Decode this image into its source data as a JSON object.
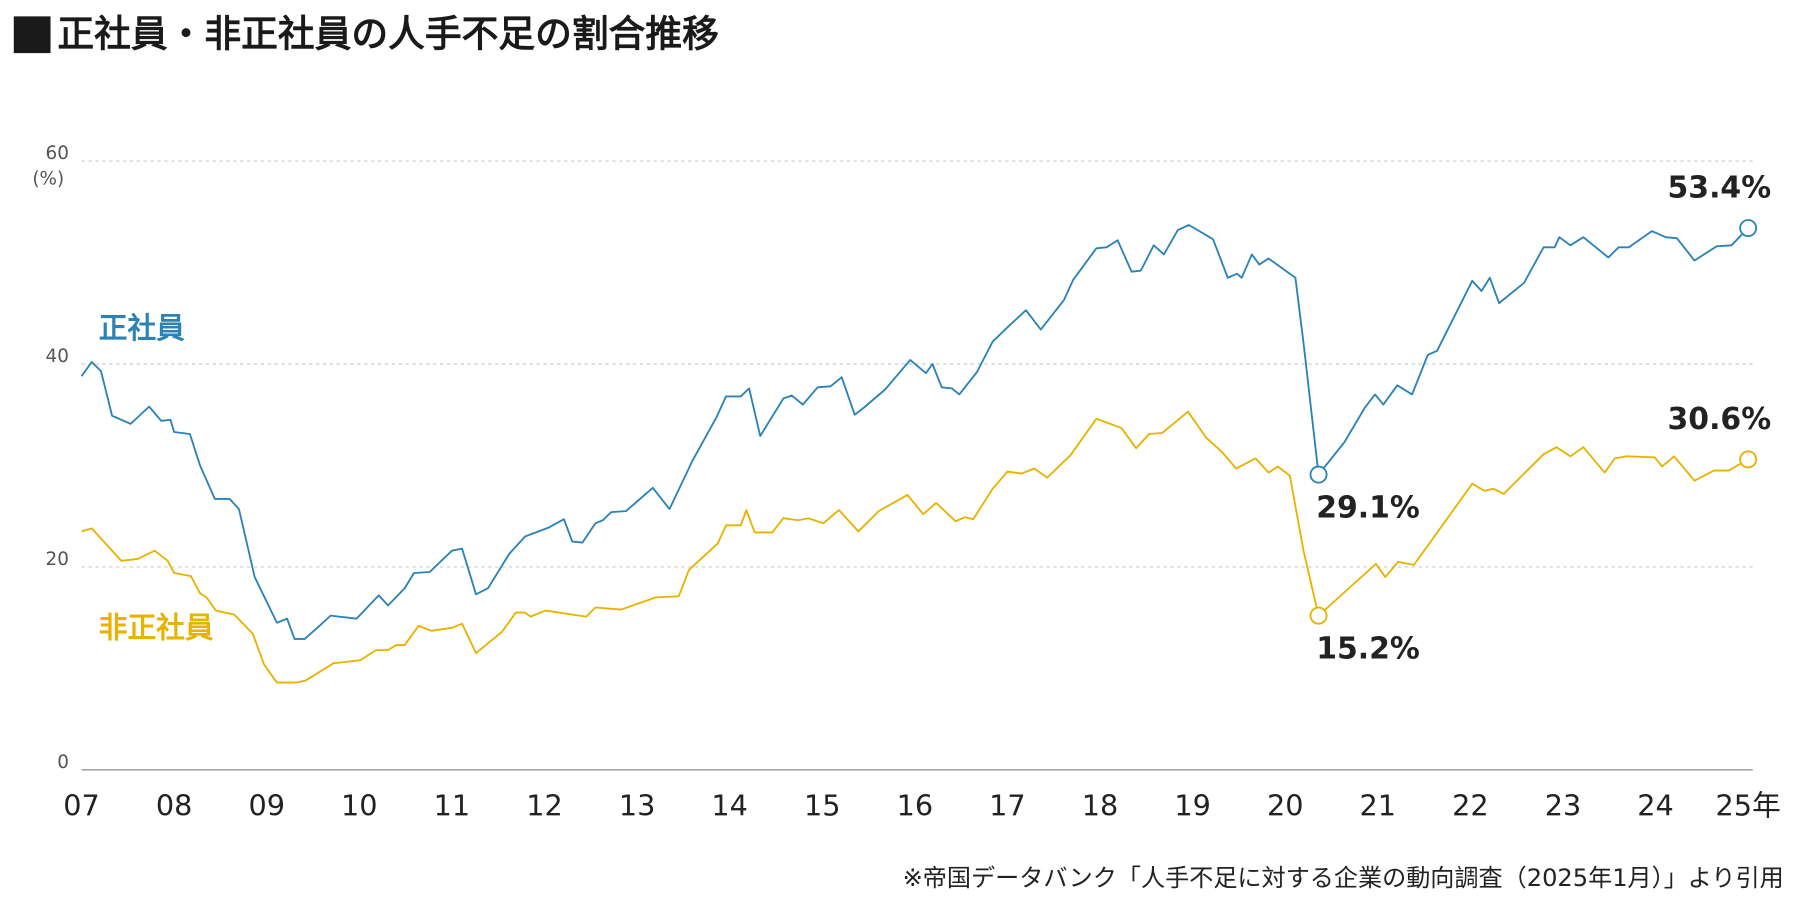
{
  "chart_data": {
    "type": "line",
    "title": "正社員・非正社員の人手不足の割合推移",
    "y_unit": "(%)",
    "source": "※帝国データバンク「人手不足に対する企業の動向調査（2025年1月）」より引用",
    "xlim": [
      2007,
      2025
    ],
    "xticks": [
      {
        "value": 2007,
        "label": "07"
      },
      {
        "value": 2008,
        "label": "08"
      },
      {
        "value": 2009,
        "label": "09"
      },
      {
        "value": 2010,
        "label": "10"
      },
      {
        "value": 2011,
        "label": "11"
      },
      {
        "value": 2012,
        "label": "12"
      },
      {
        "value": 2013,
        "label": "13"
      },
      {
        "value": 2014,
        "label": "14"
      },
      {
        "value": 2015,
        "label": "15"
      },
      {
        "value": 2016,
        "label": "16"
      },
      {
        "value": 2017,
        "label": "17"
      },
      {
        "value": 2018,
        "label": "18"
      },
      {
        "value": 2019,
        "label": "19"
      },
      {
        "value": 2020,
        "label": "20"
      },
      {
        "value": 2021,
        "label": "21"
      },
      {
        "value": 2022,
        "label": "22"
      },
      {
        "value": 2023,
        "label": "23"
      },
      {
        "value": 2024,
        "label": "24"
      },
      {
        "value": 2025,
        "label": "25年"
      }
    ],
    "ylim": [
      0,
      60
    ],
    "yticks": [
      0,
      20,
      40,
      60
    ],
    "grid": true,
    "series": [
      {
        "name": "正社員",
        "color": "#2b83b5",
        "x": [
          2007.0,
          2007.11,
          2007.21,
          2007.33,
          2007.53,
          2007.73,
          2007.86,
          2007.96,
          2008.0,
          2008.17,
          2008.28,
          2008.44,
          2008.6,
          2008.7,
          2008.87,
          2009.11,
          2009.22,
          2009.3,
          2009.41,
          2009.57,
          2009.69,
          2009.97,
          2010.21,
          2010.31,
          2010.49,
          2010.59,
          2010.76,
          2011.0,
          2011.11,
          2011.26,
          2011.39,
          2011.62,
          2011.79,
          2012.05,
          2012.21,
          2012.3,
          2012.41,
          2012.55,
          2012.63,
          2012.72,
          2012.88,
          2013.17,
          2013.35,
          2013.6,
          2013.86,
          2013.96,
          2014.12,
          2014.21,
          2014.33,
          2014.58,
          2014.67,
          2014.79,
          2014.95,
          2015.09,
          2015.21,
          2015.35,
          2015.45,
          2015.68,
          2015.95,
          2016.12,
          2016.19,
          2016.29,
          2016.4,
          2016.48,
          2016.67,
          2016.84,
          2017.01,
          2017.2,
          2017.36,
          2017.61,
          2017.71,
          2017.96,
          2018.07,
          2018.19,
          2018.34,
          2018.44,
          2018.58,
          2018.69,
          2018.84,
          2018.96,
          2019.22,
          2019.38,
          2019.48,
          2019.53,
          2019.64,
          2019.72,
          2019.82,
          2020.11,
          2020.2,
          2020.36,
          2020.64,
          2020.86,
          2020.97,
          2021.06,
          2021.21,
          2021.37,
          2021.54,
          2021.64,
          2022.02,
          2022.12,
          2022.21,
          2022.31,
          2022.58,
          2022.79,
          2022.91,
          2022.96,
          2023.08,
          2023.22,
          2023.49,
          2023.6,
          2023.71,
          2023.96,
          2024.11,
          2024.23,
          2024.42,
          2024.66,
          2024.82,
          2025.0
        ],
        "values": [
          38.8,
          40.2,
          39.3,
          34.9,
          34.1,
          35.8,
          34.4,
          34.5,
          33.3,
          33.1,
          30.0,
          26.7,
          26.7,
          25.7,
          19.0,
          14.5,
          14.9,
          12.9,
          12.9,
          14.2,
          15.2,
          14.9,
          17.2,
          16.2,
          17.9,
          19.4,
          19.5,
          21.6,
          21.8,
          17.3,
          17.9,
          21.3,
          23.0,
          23.9,
          24.7,
          22.5,
          22.4,
          24.3,
          24.6,
          25.4,
          25.5,
          27.8,
          25.7,
          30.5,
          34.8,
          36.8,
          36.8,
          37.6,
          32.9,
          36.6,
          36.9,
          36.0,
          37.7,
          37.8,
          38.7,
          35.0,
          35.7,
          37.5,
          40.4,
          39.1,
          40.0,
          37.7,
          37.6,
          37.0,
          39.2,
          42.2,
          43.7,
          45.3,
          43.4,
          46.3,
          48.3,
          51.4,
          51.5,
          52.2,
          49.1,
          49.2,
          51.7,
          50.8,
          53.2,
          53.7,
          52.3,
          48.5,
          48.9,
          48.5,
          50.8,
          49.8,
          50.4,
          48.5,
          41.9,
          29.1,
          32.3,
          35.7,
          37.0,
          36.0,
          37.9,
          37.0,
          40.9,
          41.3,
          48.2,
          47.2,
          48.5,
          46.0,
          48.0,
          51.5,
          51.5,
          52.5,
          51.7,
          52.5,
          50.5,
          51.5,
          51.5,
          53.1,
          52.5,
          52.4,
          50.2,
          51.6,
          51.7,
          53.4
        ],
        "value_labels": [
          null,
          null,
          null,
          null,
          null,
          null,
          null,
          null,
          null,
          null,
          null,
          null,
          null,
          null,
          null,
          null,
          null,
          null,
          null,
          null,
          null,
          null,
          null,
          null,
          null,
          null,
          null,
          null,
          null,
          null,
          null,
          null,
          null,
          null,
          null,
          null,
          null,
          null,
          null,
          null,
          null,
          null,
          null,
          null,
          null,
          null,
          null,
          null,
          null,
          null,
          null,
          null,
          null,
          null,
          null,
          null,
          null,
          null,
          null,
          null,
          null,
          null,
          null,
          null,
          null,
          null,
          null,
          null,
          null,
          null,
          null,
          null,
          null,
          null,
          null,
          null,
          null,
          null,
          null,
          null,
          null,
          null,
          null,
          null,
          null,
          null,
          null,
          null,
          null,
          "29.1%",
          null,
          null,
          null,
          null,
          null,
          null,
          null,
          null,
          null,
          null,
          null,
          null,
          null,
          null,
          null,
          null,
          null,
          null,
          null,
          null,
          null,
          null,
          null,
          null,
          null,
          null,
          null,
          "53.4%"
        ]
      },
      {
        "name": "非正社員",
        "color": "#e8b200",
        "x": [
          2007.0,
          2007.11,
          2007.43,
          2007.61,
          2007.79,
          2007.93,
          2008.0,
          2008.18,
          2008.28,
          2008.35,
          2008.45,
          2008.65,
          2008.85,
          2008.97,
          2009.11,
          2009.32,
          2009.42,
          2009.72,
          2010.01,
          2010.18,
          2010.31,
          2010.4,
          2010.49,
          2010.64,
          2010.78,
          2011.0,
          2011.11,
          2011.26,
          2011.54,
          2011.69,
          2011.79,
          2011.85,
          2012.01,
          2012.45,
          2012.55,
          2012.83,
          2013.2,
          2013.45,
          2013.56,
          2013.87,
          2013.96,
          2014.12,
          2014.18,
          2014.27,
          2014.46,
          2014.58,
          2014.74,
          2014.85,
          2015.01,
          2015.18,
          2015.39,
          2015.61,
          2015.92,
          2016.09,
          2016.23,
          2016.44,
          2016.54,
          2016.63,
          2016.84,
          2017.0,
          2017.15,
          2017.29,
          2017.43,
          2017.68,
          2017.96,
          2018.23,
          2018.39,
          2018.53,
          2018.67,
          2018.95,
          2019.15,
          2019.31,
          2019.47,
          2019.68,
          2019.82,
          2019.92,
          2020.05,
          2020.2,
          2020.36,
          2020.98,
          2021.08,
          2021.22,
          2021.39,
          2022.02,
          2022.15,
          2022.25,
          2022.36,
          2022.79,
          2022.93,
          2023.08,
          2023.22,
          2023.45,
          2023.56,
          2023.69,
          2023.99,
          2024.07,
          2024.2,
          2024.42,
          2024.63,
          2024.79,
          2025.0
        ],
        "values": [
          23.5,
          23.8,
          20.6,
          20.8,
          21.6,
          20.6,
          19.4,
          19.1,
          17.4,
          17.0,
          15.7,
          15.3,
          13.4,
          10.4,
          8.6,
          8.6,
          8.8,
          10.5,
          10.8,
          11.8,
          11.8,
          12.3,
          12.3,
          14.2,
          13.7,
          14.0,
          14.4,
          11.5,
          13.6,
          15.5,
          15.5,
          15.1,
          15.7,
          15.1,
          16.0,
          15.8,
          17.0,
          17.1,
          19.7,
          22.3,
          24.1,
          24.1,
          25.6,
          23.4,
          23.4,
          24.8,
          24.6,
          24.8,
          24.3,
          25.6,
          23.5,
          25.5,
          27.1,
          25.2,
          26.3,
          24.5,
          24.9,
          24.7,
          27.7,
          29.4,
          29.2,
          29.7,
          28.8,
          31.0,
          34.6,
          33.7,
          31.7,
          33.1,
          33.2,
          35.3,
          32.7,
          31.4,
          29.7,
          30.7,
          29.3,
          29.9,
          29.0,
          21.5,
          15.2,
          20.3,
          19.0,
          20.5,
          20.2,
          28.2,
          27.5,
          27.7,
          27.2,
          31.1,
          31.8,
          30.9,
          31.8,
          29.3,
          30.7,
          30.9,
          30.8,
          29.9,
          30.9,
          28.5,
          29.5,
          29.5,
          30.6
        ],
        "value_labels": [
          null,
          null,
          null,
          null,
          null,
          null,
          null,
          null,
          null,
          null,
          null,
          null,
          null,
          null,
          null,
          null,
          null,
          null,
          null,
          null,
          null,
          null,
          null,
          null,
          null,
          null,
          null,
          null,
          null,
          null,
          null,
          null,
          null,
          null,
          null,
          null,
          null,
          null,
          null,
          null,
          null,
          null,
          null,
          null,
          null,
          null,
          null,
          null,
          null,
          null,
          null,
          null,
          null,
          null,
          null,
          null,
          null,
          null,
          null,
          null,
          null,
          null,
          null,
          null,
          null,
          null,
          null,
          null,
          null,
          null,
          null,
          null,
          null,
          null,
          null,
          null,
          null,
          null,
          "15.2%",
          null,
          null,
          null,
          null,
          null,
          null,
          null,
          null,
          null,
          null,
          null,
          null,
          null,
          null,
          null,
          null,
          null,
          null,
          null,
          null,
          null,
          "30.6%"
        ]
      }
    ]
  }
}
